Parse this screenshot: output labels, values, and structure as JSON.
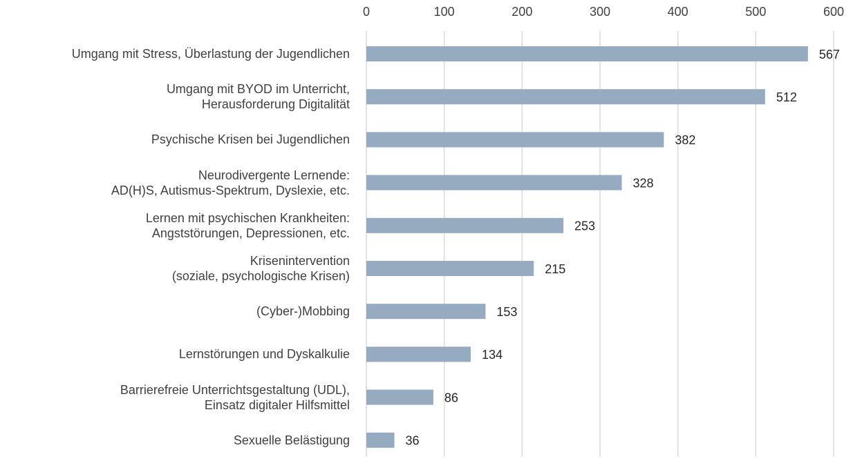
{
  "chart_data": {
    "type": "bar",
    "orientation": "horizontal",
    "categories": [
      "Umgang mit Stress, Überlastung der Jugendlichen",
      "Umgang mit BYOD im Unterricht,\nHerausforderung Digitalität",
      "Psychische Krisen bei Jugendlichen",
      "Neurodivergente Lernende:\nAD(H)S, Autismus-Spektrum, Dyslexie, etc.",
      "Lernen mit psychischen Krankheiten:\nAngststörungen, Depressionen, etc.",
      "Krisenintervention\n(soziale, psychologische Krisen)",
      "(Cyber-)Mobbing",
      "Lernstörungen und Dyskalkulie",
      "Barrierefreie Unterrichtsgestaltung (UDL),\nEinsatz digitaler Hilfsmittel",
      "Sexuelle Belästigung"
    ],
    "values": [
      567,
      512,
      382,
      328,
      253,
      215,
      153,
      134,
      86,
      36
    ],
    "color": "#96abc0",
    "xlim": [
      0,
      600
    ],
    "xticks": [
      0,
      100,
      200,
      300,
      400,
      500,
      600
    ],
    "grid": true,
    "axis_position": "top"
  }
}
